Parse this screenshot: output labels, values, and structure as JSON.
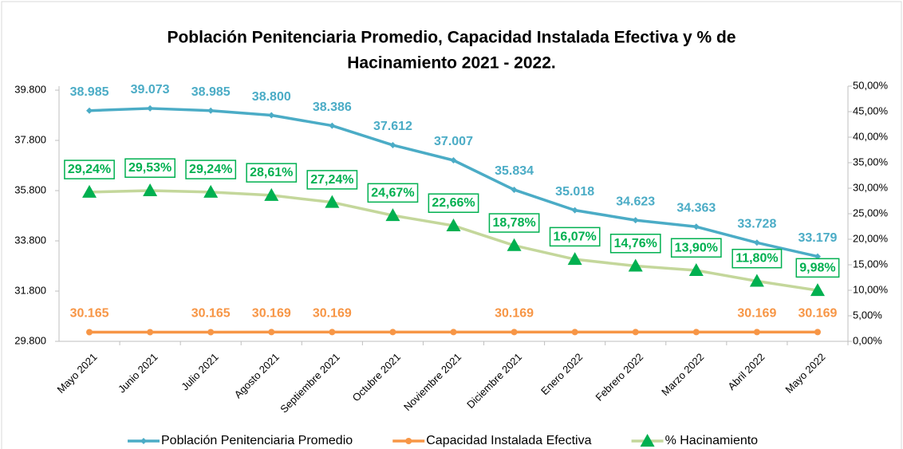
{
  "chart_data": {
    "type": "line",
    "title": [
      "Población Penitenciaria Promedio, Capacidad Instalada Efectiva y % de",
      "Hacinamiento 2021 - 2022."
    ],
    "categories": [
      "Mayo 2021",
      "Junio 2021",
      "Julio 2021",
      "Agosto 2021",
      "Septiembre 2021",
      "Octubre 2021",
      "Noviembre 2021",
      "Diciembre 2021",
      "Enero 2022",
      "Febrero 2022",
      "Marzo 2022",
      "Abril 2022",
      "Mayo 2022"
    ],
    "series": [
      {
        "name": "Población Penitenciaria Promedio",
        "color": "#4bacc6",
        "marker": "diamond",
        "values": [
          38985,
          39073,
          38985,
          38800,
          38386,
          37612,
          37007,
          35834,
          35018,
          34623,
          34363,
          33728,
          33179
        ],
        "value_labels": [
          "38.985",
          "39.073",
          "38.985",
          "38.800",
          "38.386",
          "37.612",
          "37.007",
          "35.834",
          "35.018",
          "34.623",
          "34.363",
          "33.728",
          "33.179"
        ]
      },
      {
        "name": "Capacidad Instalada Efectiva",
        "color": "#f79646",
        "marker": "circle",
        "values": [
          30165,
          30165,
          30165,
          30169,
          30169,
          30169,
          30169,
          30169,
          30169,
          30169,
          30169,
          30169,
          30169
        ],
        "value_labels": [
          "30.165",
          null,
          "30.165",
          "30.169",
          "30.169",
          null,
          null,
          "30.169",
          null,
          null,
          null,
          "30.169",
          "30.169"
        ]
      },
      {
        "name": "% Hacinamiento",
        "color": "#c4d79b",
        "marker_color": "#00b050",
        "label_color": "#00b050",
        "marker": "triangle",
        "axis": "y2",
        "values": [
          29.24,
          29.53,
          29.24,
          28.61,
          27.24,
          24.67,
          22.66,
          18.78,
          16.07,
          14.76,
          13.9,
          11.8,
          9.98
        ],
        "value_labels": [
          "29,24%",
          "29,53%",
          "29,24%",
          "28,61%",
          "27,24%",
          "24,67%",
          "22,66%",
          "18,78%",
          "16,07%",
          "14,76%",
          "13,90%",
          "11,80%",
          "9,98%"
        ]
      }
    ],
    "ylim": [
      29800,
      39960
    ],
    "yticks": [
      {
        "value": 29800,
        "label": "29.800"
      },
      {
        "value": 31800,
        "label": "31.800"
      },
      {
        "value": 33800,
        "label": "33.800"
      },
      {
        "value": 35800,
        "label": "35.800"
      },
      {
        "value": 37800,
        "label": "37.800"
      },
      {
        "value": 39800,
        "label": "39.800"
      }
    ],
    "y2lim": [
      0,
      50
    ],
    "y2ticks": [
      {
        "value": 0,
        "label": "0,00%"
      },
      {
        "value": 5,
        "label": "5,00%"
      },
      {
        "value": 10,
        "label": "10,00%"
      },
      {
        "value": 15,
        "label": "15,00%"
      },
      {
        "value": 20,
        "label": "20,00%"
      },
      {
        "value": 25,
        "label": "25,00%"
      },
      {
        "value": 30,
        "label": "30,00%"
      },
      {
        "value": 35,
        "label": "35,00%"
      },
      {
        "value": 40,
        "label": "40,00%"
      },
      {
        "value": 45,
        "label": "45,00%"
      },
      {
        "value": 50,
        "label": "50,00%"
      }
    ],
    "grid": false,
    "legend": "bottom"
  }
}
